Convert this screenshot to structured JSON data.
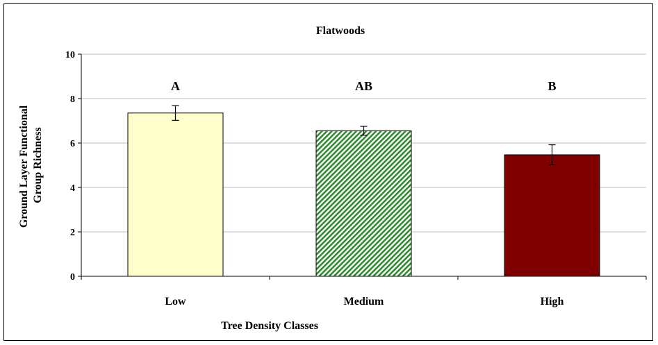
{
  "chart_data": {
    "type": "bar",
    "title": "Flatwoods",
    "xlabel": "Tree Density Classes",
    "ylabel_lines": [
      "Ground Layer Functional",
      "Group Richness"
    ],
    "categories": [
      "Low",
      "Medium",
      "High"
    ],
    "values": [
      7.35,
      6.55,
      5.47
    ],
    "errors": [
      0.33,
      0.2,
      0.45
    ],
    "significance_letters": [
      "A",
      "AB",
      "B"
    ],
    "bar_colors": [
      "#ffffcc",
      "#2e8b2e",
      "#800000"
    ],
    "bar_patterns": [
      "solid",
      "diagonal-hatch",
      "solid"
    ],
    "ylim": [
      0,
      10
    ],
    "yticks": [
      0,
      2,
      4,
      6,
      8,
      10
    ],
    "grid": true,
    "legend": "none"
  }
}
